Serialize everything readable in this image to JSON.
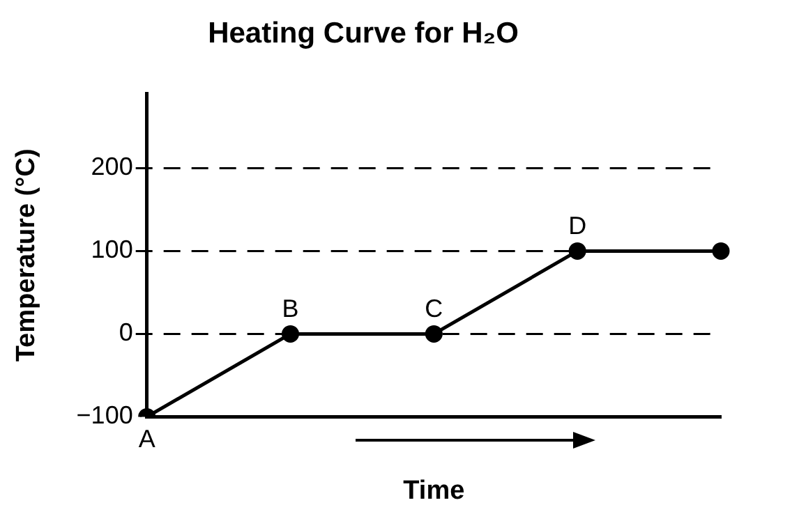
{
  "chart_data": {
    "type": "line",
    "title": "Heating Curve for H₂O",
    "xlabel": "Time",
    "ylabel": "Temperature (°C)",
    "categories": [
      null,
      null,
      null,
      null,
      null
    ],
    "series": [
      {
        "color": "#000000",
        "values": [
          -100,
          0,
          0,
          100,
          100
        ],
        "value_labels": [
          "A",
          "B",
          "C",
          "D",
          null
        ]
      }
    ],
    "ylim": [
      -100,
      290
    ],
    "yticks": [
      -100,
      0,
      100,
      200
    ],
    "grid": "y",
    "legend": false,
    "marker": "circle",
    "tick_labels": "y"
  }
}
